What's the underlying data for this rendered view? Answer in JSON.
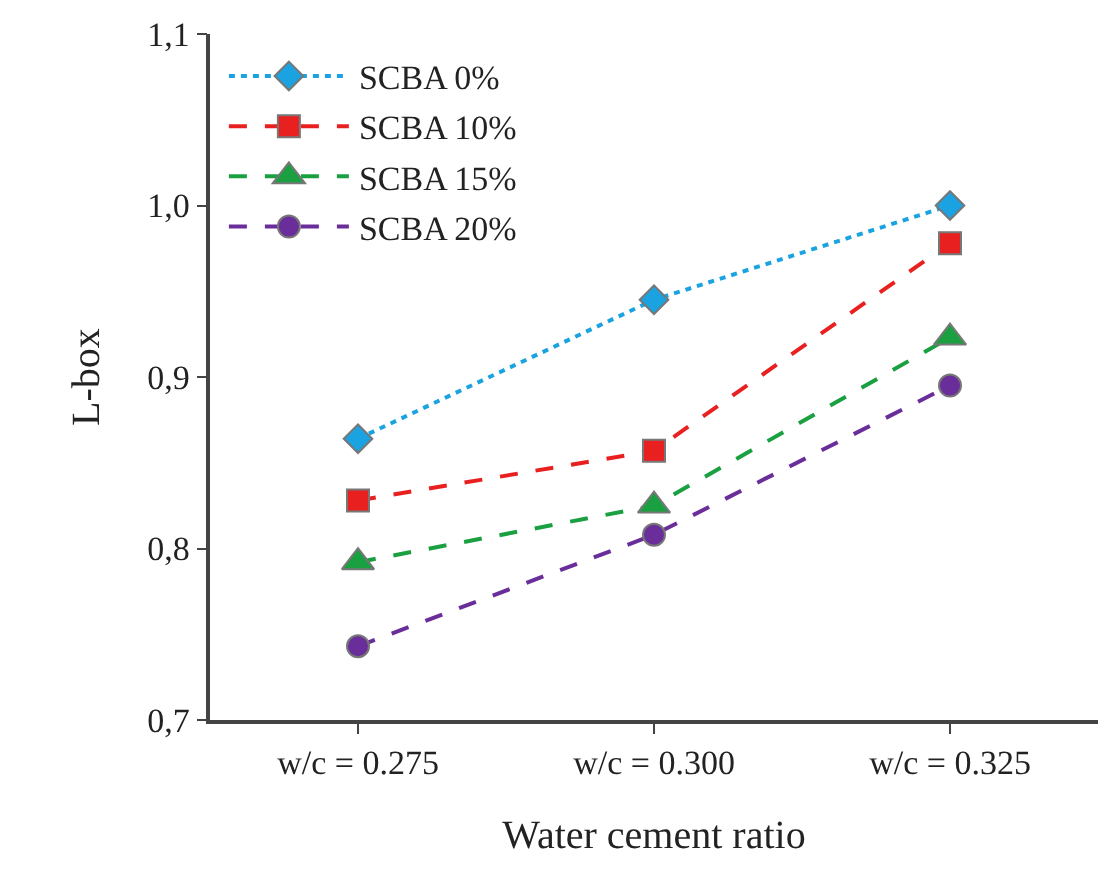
{
  "chart_data": {
    "type": "line",
    "xlabel": "Water cement ratio",
    "ylabel": "L-box",
    "categories": [
      "w/c = 0.275",
      "w/c = 0.300",
      "w/c = 0.325"
    ],
    "ylim": [
      0.7,
      1.1
    ],
    "yticks": [
      {
        "value": 0.7,
        "label": "0,7"
      },
      {
        "value": 0.8,
        "label": "0,8"
      },
      {
        "value": 0.9,
        "label": "0,9"
      },
      {
        "value": 1.0,
        "label": "1,0"
      },
      {
        "value": 1.1,
        "label": "1,1"
      }
    ],
    "grid": false,
    "legend": "top left",
    "series": [
      {
        "name": "SCBA 0%",
        "color": "#1aa3e0",
        "marker": "diamond",
        "line_style": "dotted",
        "values": [
          0.864,
          0.945,
          1.0
        ]
      },
      {
        "name": "SCBA 10%",
        "color": "#e82020",
        "marker": "square",
        "line_style": "dashed",
        "values": [
          0.828,
          0.857,
          0.978
        ]
      },
      {
        "name": "SCBA 15%",
        "color": "#1aa040",
        "marker": "triangle",
        "line_style": "dashed",
        "values": [
          0.792,
          0.825,
          0.923
        ]
      },
      {
        "name": "SCBA 20%",
        "color": "#6a2e9a",
        "marker": "circle",
        "line_style": "dashed",
        "values": [
          0.743,
          0.808,
          0.895
        ]
      }
    ]
  }
}
